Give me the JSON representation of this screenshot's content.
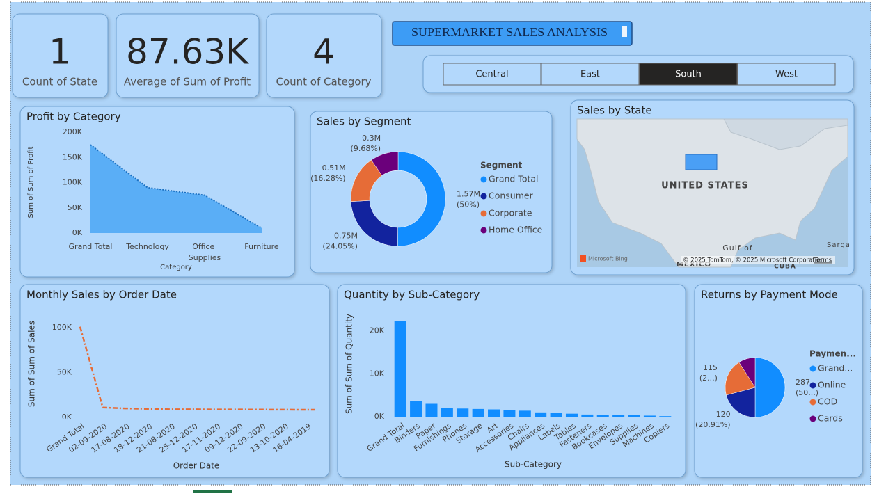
{
  "title": "SUPERMARKET SALES ANALYSIS",
  "cards": [
    {
      "value": "1",
      "label": "Count of State"
    },
    {
      "value": "87.63K",
      "label": "Average of Sum of Profit"
    },
    {
      "value": "4",
      "label": "Count of Category"
    }
  ],
  "slicer": {
    "options": [
      "Central",
      "East",
      "South",
      "West"
    ],
    "selected": "South"
  },
  "chart_data": [
    {
      "type": "area",
      "title": "Profit by Category",
      "x_label": "Category",
      "y_label": "Sum of Sum of Profit",
      "categories": [
        "Grand Total",
        "Technology",
        "Office Supplies",
        "Furniture"
      ],
      "values": [
        175000,
        90000,
        75000,
        10000
      ],
      "color": "#5aaef6",
      "line_color": "#1a6fc0",
      "ylim": [
        0,
        200000
      ],
      "yticks": [
        {
          "value": 0,
          "label": "0K"
        },
        {
          "value": 50000,
          "label": "50K"
        },
        {
          "value": 100000,
          "label": "100K"
        },
        {
          "value": 150000,
          "label": "150K"
        },
        {
          "value": 200000,
          "label": "200K"
        }
      ]
    },
    {
      "type": "donut",
      "title": "Sales by Segment",
      "legend_title": "Segment",
      "categories": [
        "Grand Total",
        "Consumer",
        "Corporate",
        "Home Office"
      ],
      "values": [
        1570000,
        750000,
        510000,
        300000
      ],
      "value_labels": [
        "1.57M",
        "0.75M",
        "0.51M",
        "0.3M"
      ],
      "percent_labels": [
        "(50%)",
        "(24.05%)",
        "(16.28%)",
        "(9.68%)"
      ],
      "colors": [
        "#118dff",
        "#12239e",
        "#e66c37",
        "#6b007b"
      ]
    },
    {
      "type": "map",
      "title": "Sales by State",
      "labels": [
        "UNITED STATES",
        "Gulf of",
        "MEXICO",
        "CUBA",
        "Sarga"
      ],
      "provider": "Microsoft Bing",
      "attribution": "© 2025 TomTom, © 2025 Microsoft Corporation",
      "terms": "Terms",
      "highlight_color": "#4a9ff5"
    },
    {
      "type": "line",
      "title": "Monthly Sales by Order Date",
      "x_label": "Order Date",
      "y_label": "Sum of Sum of Sales",
      "categories": [
        "Grand Total",
        "02-09-2020",
        "17-08-2020",
        "18-12-2020",
        "21-08-2020",
        "25-12-2020",
        "17-11-2020",
        "09-12-2020",
        "22-09-2020",
        "13-10-2020",
        "16-04-2019"
      ],
      "values": [
        101000,
        11000,
        10000,
        9500,
        9000,
        9000,
        8800,
        8800,
        8700,
        8600,
        8500
      ],
      "color": "#e66c37",
      "ylim": [
        0,
        110000
      ],
      "yticks": [
        {
          "value": 0,
          "label": "0K"
        },
        {
          "value": 50000,
          "label": "50K"
        },
        {
          "value": 100000,
          "label": "100K"
        }
      ]
    },
    {
      "type": "bar",
      "title": "Quantity by Sub-Category",
      "x_label": "Sub-Category",
      "y_label": "Sum of Sum of Quantity",
      "categories": [
        "Grand Total",
        "Binders",
        "Paper",
        "Furnishings",
        "Phones",
        "Storage",
        "Art",
        "Accessories",
        "Chairs",
        "Appliances",
        "Labels",
        "Tables",
        "Fasteners",
        "Bookcases",
        "Envelopes",
        "Supplies",
        "Machines",
        "Copiers"
      ],
      "values": [
        22300,
        3600,
        3000,
        2000,
        1900,
        1800,
        1700,
        1600,
        1400,
        1000,
        900,
        700,
        500,
        450,
        420,
        400,
        250,
        130
      ],
      "color": "#118dff",
      "ylim": [
        0,
        24000
      ],
      "yticks": [
        {
          "value": 0,
          "label": "0K"
        },
        {
          "value": 10000,
          "label": "10K"
        },
        {
          "value": 20000,
          "label": "20K"
        }
      ]
    },
    {
      "type": "pie",
      "title": "Returns by Payment Mode",
      "legend_title": "Paymen...",
      "categories": [
        "Grand...",
        "Online",
        "COD",
        "Cards"
      ],
      "values": [
        287,
        120,
        115,
        52
      ],
      "percent_labels": [
        "(50...)",
        "(20.91%)",
        "(2...)",
        null
      ],
      "colors": [
        "#118dff",
        "#12239e",
        "#e66c37",
        "#6b007b"
      ]
    }
  ]
}
